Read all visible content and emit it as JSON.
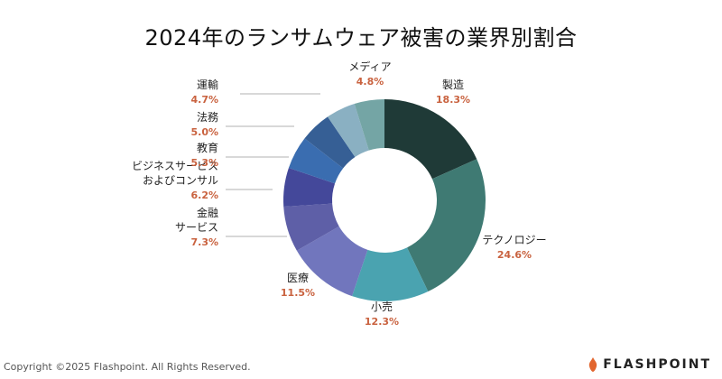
{
  "chart_data": {
    "type": "pie",
    "title": "2024年のランサムウェア被害の業界別割合",
    "slices": [
      {
        "name": [
          "製造"
        ],
        "value": 18.3,
        "label": "18.3%",
        "color": "#1f3a37"
      },
      {
        "name": [
          "テクノロジー"
        ],
        "value": 24.6,
        "label": "24.6%",
        "color": "#3f7a73"
      },
      {
        "name": [
          "小売"
        ],
        "value": 12.3,
        "label": "12.3%",
        "color": "#4aa3b0"
      },
      {
        "name": [
          "医療"
        ],
        "value": 11.5,
        "label": "11.5%",
        "color": "#7176bd"
      },
      {
        "name": [
          "金融",
          "サービス"
        ],
        "value": 7.3,
        "label": "7.3%",
        "color": "#5e5fa7"
      },
      {
        "name": [
          "ビジネスサービス",
          "およびコンサル"
        ],
        "value": 6.2,
        "label": "6.2%",
        "color": "#44489a"
      },
      {
        "name": [
          "教育"
        ],
        "value": 5.3,
        "label": "5.3%",
        "color": "#3a6db0"
      },
      {
        "name": [
          "法務"
        ],
        "value": 5.0,
        "label": "5.0%",
        "color": "#365f95"
      },
      {
        "name": [
          "運輸"
        ],
        "value": 4.7,
        "label": "4.7%",
        "color": "#8ab0c2"
      },
      {
        "name": [
          "メディア"
        ],
        "value": 4.8,
        "label": "4.8%",
        "color": "#74a5a5"
      }
    ]
  },
  "footer": {
    "copyright": "Copyright ©2025 Flashpoint. All Rights Reserved.",
    "logo_text": "FLASHPOINT"
  },
  "colors": {
    "percent_label": "#c9623f",
    "leader_line": "#999999"
  }
}
